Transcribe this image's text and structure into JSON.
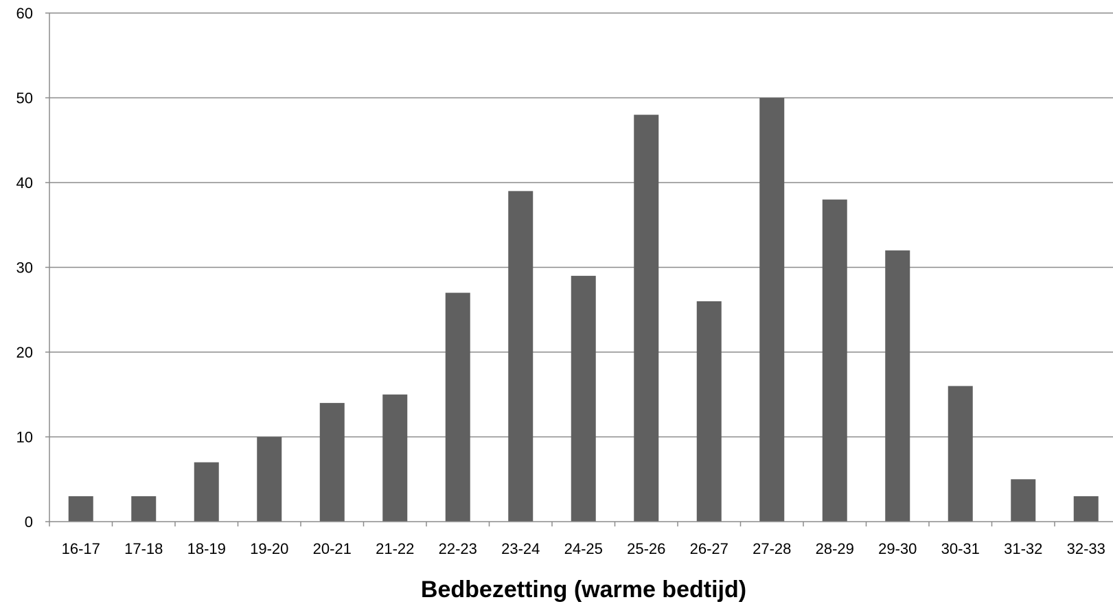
{
  "chart_data": {
    "type": "bar",
    "title": "",
    "xlabel": "Bedbezetting (warme bedtijd)",
    "ylabel": "",
    "ylim": [
      0,
      60
    ],
    "yticks": [
      0,
      10,
      20,
      30,
      40,
      50,
      60
    ],
    "grid": true,
    "legend": "none",
    "categories": [
      "16-17",
      "17-18",
      "18-19",
      "19-20",
      "20-21",
      "21-22",
      "22-23",
      "23-24",
      "24-25",
      "25-26",
      "26-27",
      "27-28",
      "28-29",
      "29-30",
      "30-31",
      "31-32",
      "32-33"
    ],
    "values": [
      3,
      3,
      7,
      10,
      14,
      15,
      27,
      39,
      29,
      48,
      26,
      50,
      38,
      32,
      16,
      5,
      3
    ],
    "colors": {
      "bar": "#606060",
      "grid": "#8c8c8c",
      "axis": "#8c8c8c"
    }
  }
}
